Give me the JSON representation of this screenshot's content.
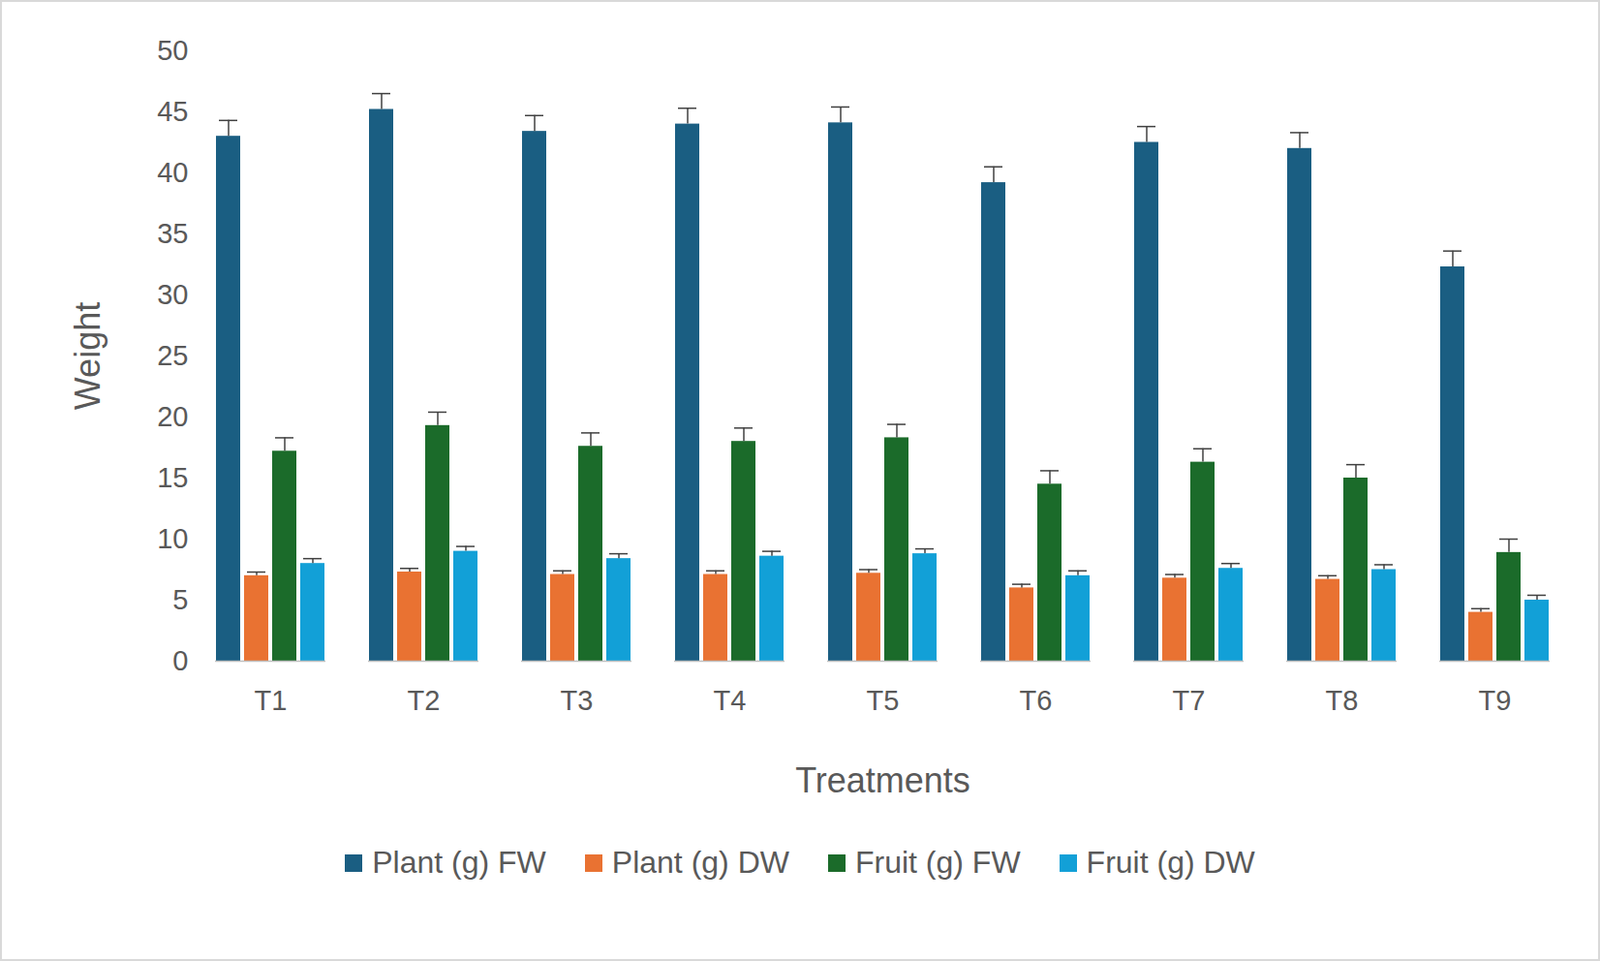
{
  "chart_data": {
    "type": "bar",
    "x_label": "Treatments",
    "y_label": "Weight",
    "categories": [
      "T1",
      "T2",
      "T3",
      "T4",
      "T5",
      "T6",
      "T7",
      "T8",
      "T9"
    ],
    "series": [
      {
        "name": "Plant (g) FW",
        "color": "#1a5e82",
        "values": [
          43.0,
          45.2,
          43.4,
          44.0,
          44.1,
          39.2,
          42.5,
          42.0,
          32.3
        ],
        "errors": [
          1.3,
          1.3,
          1.3,
          1.3,
          1.3,
          1.3,
          1.3,
          1.3,
          1.3
        ]
      },
      {
        "name": "Plant (g) DW",
        "color": "#e97232",
        "values": [
          7.0,
          7.3,
          7.1,
          7.1,
          7.2,
          6.0,
          6.8,
          6.7,
          4.0
        ],
        "errors": [
          0.3,
          0.3,
          0.3,
          0.3,
          0.3,
          0.3,
          0.3,
          0.3,
          0.3
        ]
      },
      {
        "name": "Fruit (g) FW",
        "color": "#1b6b2a",
        "values": [
          17.2,
          19.3,
          17.6,
          18.0,
          18.3,
          14.5,
          16.3,
          15.0,
          8.9
        ],
        "errors": [
          1.1,
          1.1,
          1.1,
          1.1,
          1.1,
          1.1,
          1.1,
          1.1,
          1.1
        ]
      },
      {
        "name": "Fruit (g) DW",
        "color": "#12a0d7",
        "values": [
          8.0,
          9.0,
          8.4,
          8.6,
          8.8,
          7.0,
          7.6,
          7.5,
          5.0
        ],
        "errors": [
          0.4,
          0.4,
          0.4,
          0.4,
          0.4,
          0.4,
          0.4,
          0.4,
          0.4
        ]
      }
    ],
    "ylim": [
      0,
      50
    ],
    "yticks": [
      0,
      5,
      10,
      15,
      20,
      25,
      30,
      35,
      40,
      45,
      50
    ],
    "grid": false,
    "legend": "bottom"
  }
}
